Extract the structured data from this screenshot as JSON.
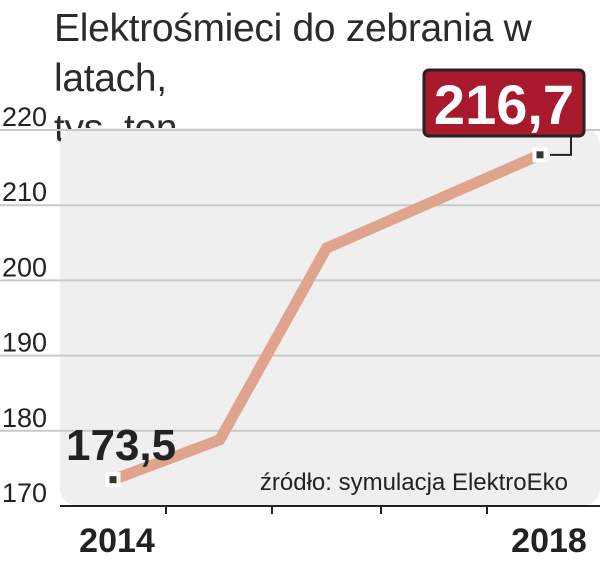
{
  "chart_data": {
    "type": "line",
    "title_line1": "Elektrośmieci do zebrania w latach,",
    "title_line2": "tys. ton",
    "x": [
      2014,
      2015,
      2016,
      2017,
      2018
    ],
    "x_tick_labels": [
      "2014",
      "2018"
    ],
    "series": [
      {
        "values": [
          173.5,
          178.8,
          204.3,
          210.5,
          216.7
        ]
      }
    ],
    "y_ticks": [
      170,
      180,
      190,
      200,
      210,
      220
    ],
    "ylim": [
      170,
      220
    ],
    "grid": true,
    "annotations": [
      {
        "label": "173,5",
        "x": 2014,
        "style": "plain"
      },
      {
        "label": "216,7",
        "x": 2018,
        "style": "boxed"
      }
    ],
    "source": "źródło: symulacja ElektroEko"
  },
  "colors": {
    "line": "#e0a48c",
    "plot_bg": "#efefef",
    "grid": "#c9c9c9",
    "callout_box": "#a8192e",
    "callout_text": "#ffffff"
  }
}
